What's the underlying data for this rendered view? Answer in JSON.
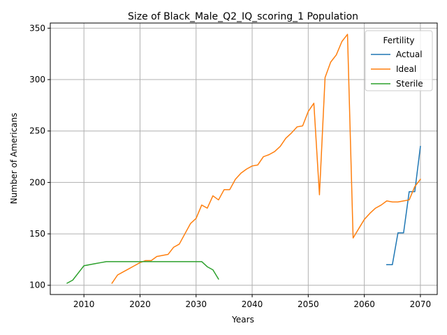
{
  "chart_data": {
    "type": "line",
    "title": "Size of Black_Male_Q2_IQ_scoring_1 Population",
    "xlabel": "Years",
    "ylabel": "Number of Americans",
    "xlim": [
      2004,
      2073
    ],
    "ylim": [
      91,
      355
    ],
    "xticks": [
      2010,
      2020,
      2030,
      2040,
      2050,
      2060,
      2070
    ],
    "yticks": [
      100,
      150,
      200,
      250,
      300,
      350
    ],
    "grid": true,
    "legend": {
      "title": "Fertility",
      "position": "top-right"
    },
    "series": [
      {
        "name": "Actual",
        "color": "#1f77b4",
        "x": [
          2064,
          2065,
          2066,
          2067,
          2068,
          2069,
          2070
        ],
        "y": [
          120,
          120,
          151,
          151,
          191,
          191,
          235
        ]
      },
      {
        "name": "Ideal",
        "color": "#ff7f0e",
        "x": [
          2015,
          2016,
          2017,
          2018,
          2019,
          2020,
          2021,
          2022,
          2023,
          2024,
          2025,
          2026,
          2027,
          2028,
          2029,
          2030,
          2031,
          2032,
          2033,
          2034,
          2035,
          2036,
          2037,
          2038,
          2039,
          2040,
          2041,
          2042,
          2043,
          2044,
          2045,
          2046,
          2047,
          2048,
          2049,
          2050,
          2051,
          2052,
          2053,
          2054,
          2055,
          2056,
          2057,
          2058,
          2059,
          2060,
          2061,
          2062,
          2063,
          2064,
          2065,
          2066,
          2067,
          2068,
          2069,
          2070
        ],
        "y": [
          102,
          110,
          113,
          116,
          119,
          122,
          124,
          124,
          128,
          129,
          130,
          137,
          140,
          150,
          160,
          165,
          178,
          175,
          187,
          183,
          193,
          193,
          203,
          209,
          213,
          216,
          217,
          225,
          227,
          230,
          235,
          243,
          248,
          254,
          255,
          269,
          277,
          188,
          302,
          317,
          324,
          337,
          344,
          146,
          155,
          164,
          170,
          175,
          178,
          182,
          181,
          181,
          182,
          183,
          196,
          203
        ]
      },
      {
        "name": "Sterile",
        "color": "#2ca02c",
        "x": [
          2007,
          2008,
          2009,
          2010,
          2011,
          2012,
          2013,
          2014,
          2015,
          2016,
          2017,
          2018,
          2019,
          2020,
          2021,
          2022,
          2023,
          2024,
          2025,
          2026,
          2027,
          2028,
          2029,
          2030,
          2031,
          2032,
          2033,
          2034
        ],
        "y": [
          102,
          105,
          112,
          119,
          120,
          121,
          122,
          123,
          123,
          123,
          123,
          123,
          123,
          123,
          123,
          123,
          123,
          123,
          123,
          123,
          123,
          123,
          123,
          123,
          123,
          118,
          115,
          106
        ]
      }
    ]
  }
}
